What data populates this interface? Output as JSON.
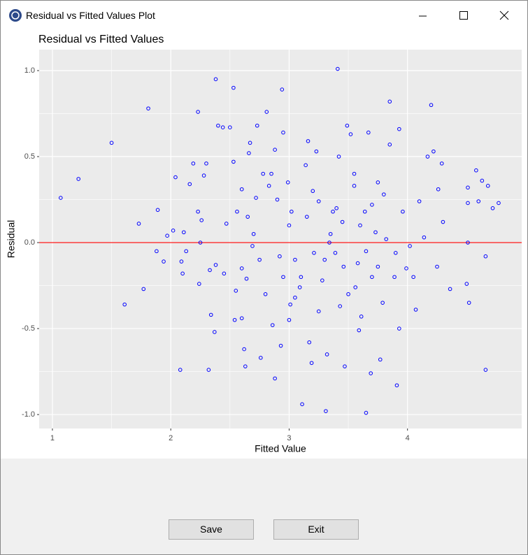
{
  "window": {
    "title": "Residual vs Fitted Values Plot",
    "buttons": [
      "Save",
      "Exit"
    ]
  },
  "chart_data": {
    "type": "scatter",
    "title": "Residual vs Fitted Values",
    "x_label": "Fitted Value",
    "y_label": "Residual",
    "xlim": [
      0.888,
      4.965
    ],
    "ylim": [
      -1.081,
      1.122
    ],
    "xticks": [
      1,
      2,
      3,
      4
    ],
    "yticks": [
      {
        "value": 1,
        "label": "1.0"
      },
      0.5,
      {
        "value": 0,
        "label": "0.0"
      },
      -0.5,
      {
        "value": -1,
        "label": "-1.0"
      }
    ],
    "grid": true,
    "background": "#ebebeb",
    "color": "#0000ff",
    "hline": 0,
    "hline_color": "#ff0000",
    "x": [
      1.07,
      1.22,
      1.5,
      1.61,
      1.73,
      1.77,
      1.81,
      1.89,
      1.88,
      1.94,
      1.97,
      2.02,
      2.04,
      2.08,
      2.09,
      2.1,
      2.11,
      2.13,
      2.16,
      2.19,
      2.23,
      2.23,
      2.25,
      2.24,
      2.26,
      2.28,
      2.3,
      2.32,
      2.34,
      2.33,
      2.37,
      2.38,
      2.38,
      2.4,
      2.44,
      2.47,
      2.5,
      2.53,
      2.53,
      2.54,
      2.56,
      2.6,
      2.62,
      2.63,
      2.6,
      2.64,
      2.66,
      2.67,
      2.69,
      2.72,
      2.73,
      2.76,
      2.78,
      2.81,
      2.83,
      2.86,
      2.88,
      2.88,
      2.92,
      2.93,
      2.94,
      2.95,
      2.99,
      3.01,
      3.02,
      3.05,
      3.09,
      3.11,
      3.14,
      3.16,
      3.17,
      3.19,
      3.21,
      3.23,
      3.25,
      3.28,
      3.31,
      3.32,
      3.34,
      3.37,
      3.39,
      3.41,
      3.42,
      3.43,
      3.46,
      3.47,
      3.49,
      3.52,
      3.55,
      3.56,
      3.59,
      3.61,
      3.64,
      3.65,
      3.67,
      3.69,
      3.7,
      3.73,
      3.75,
      3.77,
      3.79,
      3.82,
      3.85,
      3.85,
      3.89,
      3.91,
      3.93,
      3.93,
      3.96,
      3.99,
      4.02,
      4.05,
      4.07,
      4.1,
      4.14,
      4.17,
      4.2,
      4.22,
      4.25,
      4.26,
      4.29,
      4.3,
      4.36,
      4.5,
      4.51,
      4.51,
      4.52,
      4.58,
      4.63,
      4.66,
      4.66,
      4.68,
      4.72,
      4.77,
      4.51,
      4.6,
      3.0,
      3.1,
      2.9,
      2.8,
      3.2,
      3.3,
      3.6,
      3.5,
      2.7,
      3.7,
      2.6,
      3.4,
      3.0,
      2.85,
      3.55,
      3.25,
      2.75,
      3.65,
      3.15,
      2.95,
      3.45,
      2.55,
      3.8,
      3.35,
      2.65,
      3.05,
      3.75,
      2.45,
      3.9,
      3.58
    ],
    "values": [
      0.26,
      0.37,
      0.58,
      -0.36,
      0.11,
      -0.27,
      0.78,
      0.19,
      -0.05,
      -0.11,
      0.04,
      0.07,
      0.38,
      -0.74,
      -0.11,
      -0.18,
      0.06,
      -0.05,
      0.34,
      0.46,
      0.18,
      0.76,
      0.0,
      -0.24,
      0.13,
      0.39,
      0.46,
      -0.74,
      -0.42,
      -0.16,
      -0.52,
      -0.13,
      0.95,
      0.68,
      0.67,
      0.11,
      0.67,
      0.9,
      0.47,
      -0.45,
      0.18,
      -0.44,
      -0.62,
      -0.72,
      0.31,
      -0.21,
      0.52,
      0.58,
      -0.02,
      0.26,
      0.68,
      -0.67,
      0.4,
      0.76,
      0.33,
      -0.48,
      0.54,
      -0.79,
      -0.08,
      -0.6,
      0.89,
      0.64,
      0.35,
      -0.36,
      0.18,
      -0.1,
      -0.26,
      -0.94,
      0.45,
      0.59,
      -0.58,
      -0.7,
      -0.06,
      0.53,
      0.24,
      -0.22,
      -0.98,
      -0.65,
      0.0,
      0.18,
      -0.06,
      1.01,
      0.5,
      -0.37,
      -0.14,
      -0.72,
      0.68,
      0.63,
      0.33,
      -0.26,
      -0.51,
      -0.43,
      0.18,
      -0.99,
      0.64,
      -0.76,
      0.22,
      0.06,
      -0.14,
      -0.68,
      -0.35,
      0.02,
      0.82,
      0.57,
      -0.2,
      -0.83,
      0.66,
      -0.5,
      0.18,
      -0.15,
      -0.02,
      -0.2,
      -0.39,
      0.24,
      0.03,
      0.5,
      0.8,
      0.53,
      -0.14,
      0.31,
      0.46,
      0.12,
      -0.27,
      -0.24,
      0.32,
      0.0,
      -0.35,
      0.42,
      0.36,
      -0.08,
      -0.74,
      0.33,
      0.2,
      0.23,
      0.23,
      0.24,
      0.1,
      -0.2,
      0.25,
      -0.3,
      0.3,
      -0.1,
      0.1,
      -0.3,
      0.05,
      -0.2,
      -0.15,
      0.2,
      -0.45,
      0.4,
      0.4,
      -0.4,
      -0.1,
      -0.05,
      0.15,
      -0.2,
      0.12,
      -0.28,
      0.28,
      0.05,
      0.15,
      -0.32,
      0.35,
      -0.18,
      -0.06,
      -0.12
    ]
  }
}
